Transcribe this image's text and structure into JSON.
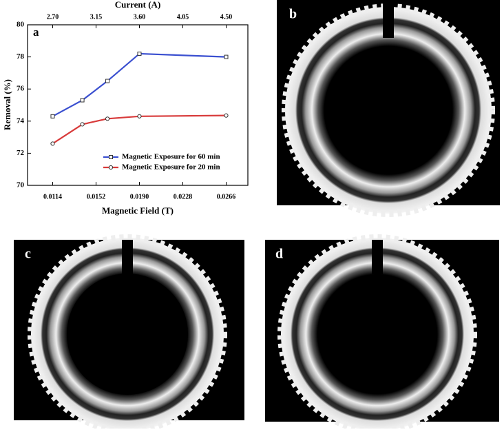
{
  "chart_data": {
    "type": "line",
    "panel_label": "a",
    "xlabel": "Magnetic Field (T)",
    "ylabel": "Removal (%)",
    "x2label": "Current (A)",
    "x": [
      0.0114,
      0.014,
      0.0162,
      0.019,
      0.0266
    ],
    "series": [
      {
        "name": "Magnetic Exposure for 60 min",
        "color": "#3a4fd0",
        "marker": "square",
        "values": [
          74.3,
          75.3,
          76.5,
          78.2,
          78.0
        ]
      },
      {
        "name": "Magnetic Exposure for 20 min",
        "color": "#d83a3a",
        "marker": "circle",
        "values": [
          72.6,
          73.8,
          74.15,
          74.3,
          74.35
        ]
      }
    ],
    "xlim": [
      0.0092,
      0.0285
    ],
    "xticks": [
      0.0114,
      0.0152,
      {
        "value": 0.019,
        "label": "0.0190"
      },
      0.0228,
      0.0266
    ],
    "x2ticks": [
      {
        "value": 0.0114,
        "label": "2.70"
      },
      {
        "value": 0.0152,
        "label": "3.15"
      },
      {
        "value": 0.019,
        "label": "3.60"
      },
      {
        "value": 0.0228,
        "label": "4.05"
      },
      {
        "value": 0.0266,
        "label": "4.50"
      }
    ],
    "ylim": [
      70,
      80
    ],
    "yticks": [
      70,
      72,
      74,
      76,
      78,
      80
    ],
    "legend": "lower right"
  },
  "panels": [
    {
      "label": "b"
    },
    {
      "label": "c"
    },
    {
      "label": "d"
    }
  ]
}
